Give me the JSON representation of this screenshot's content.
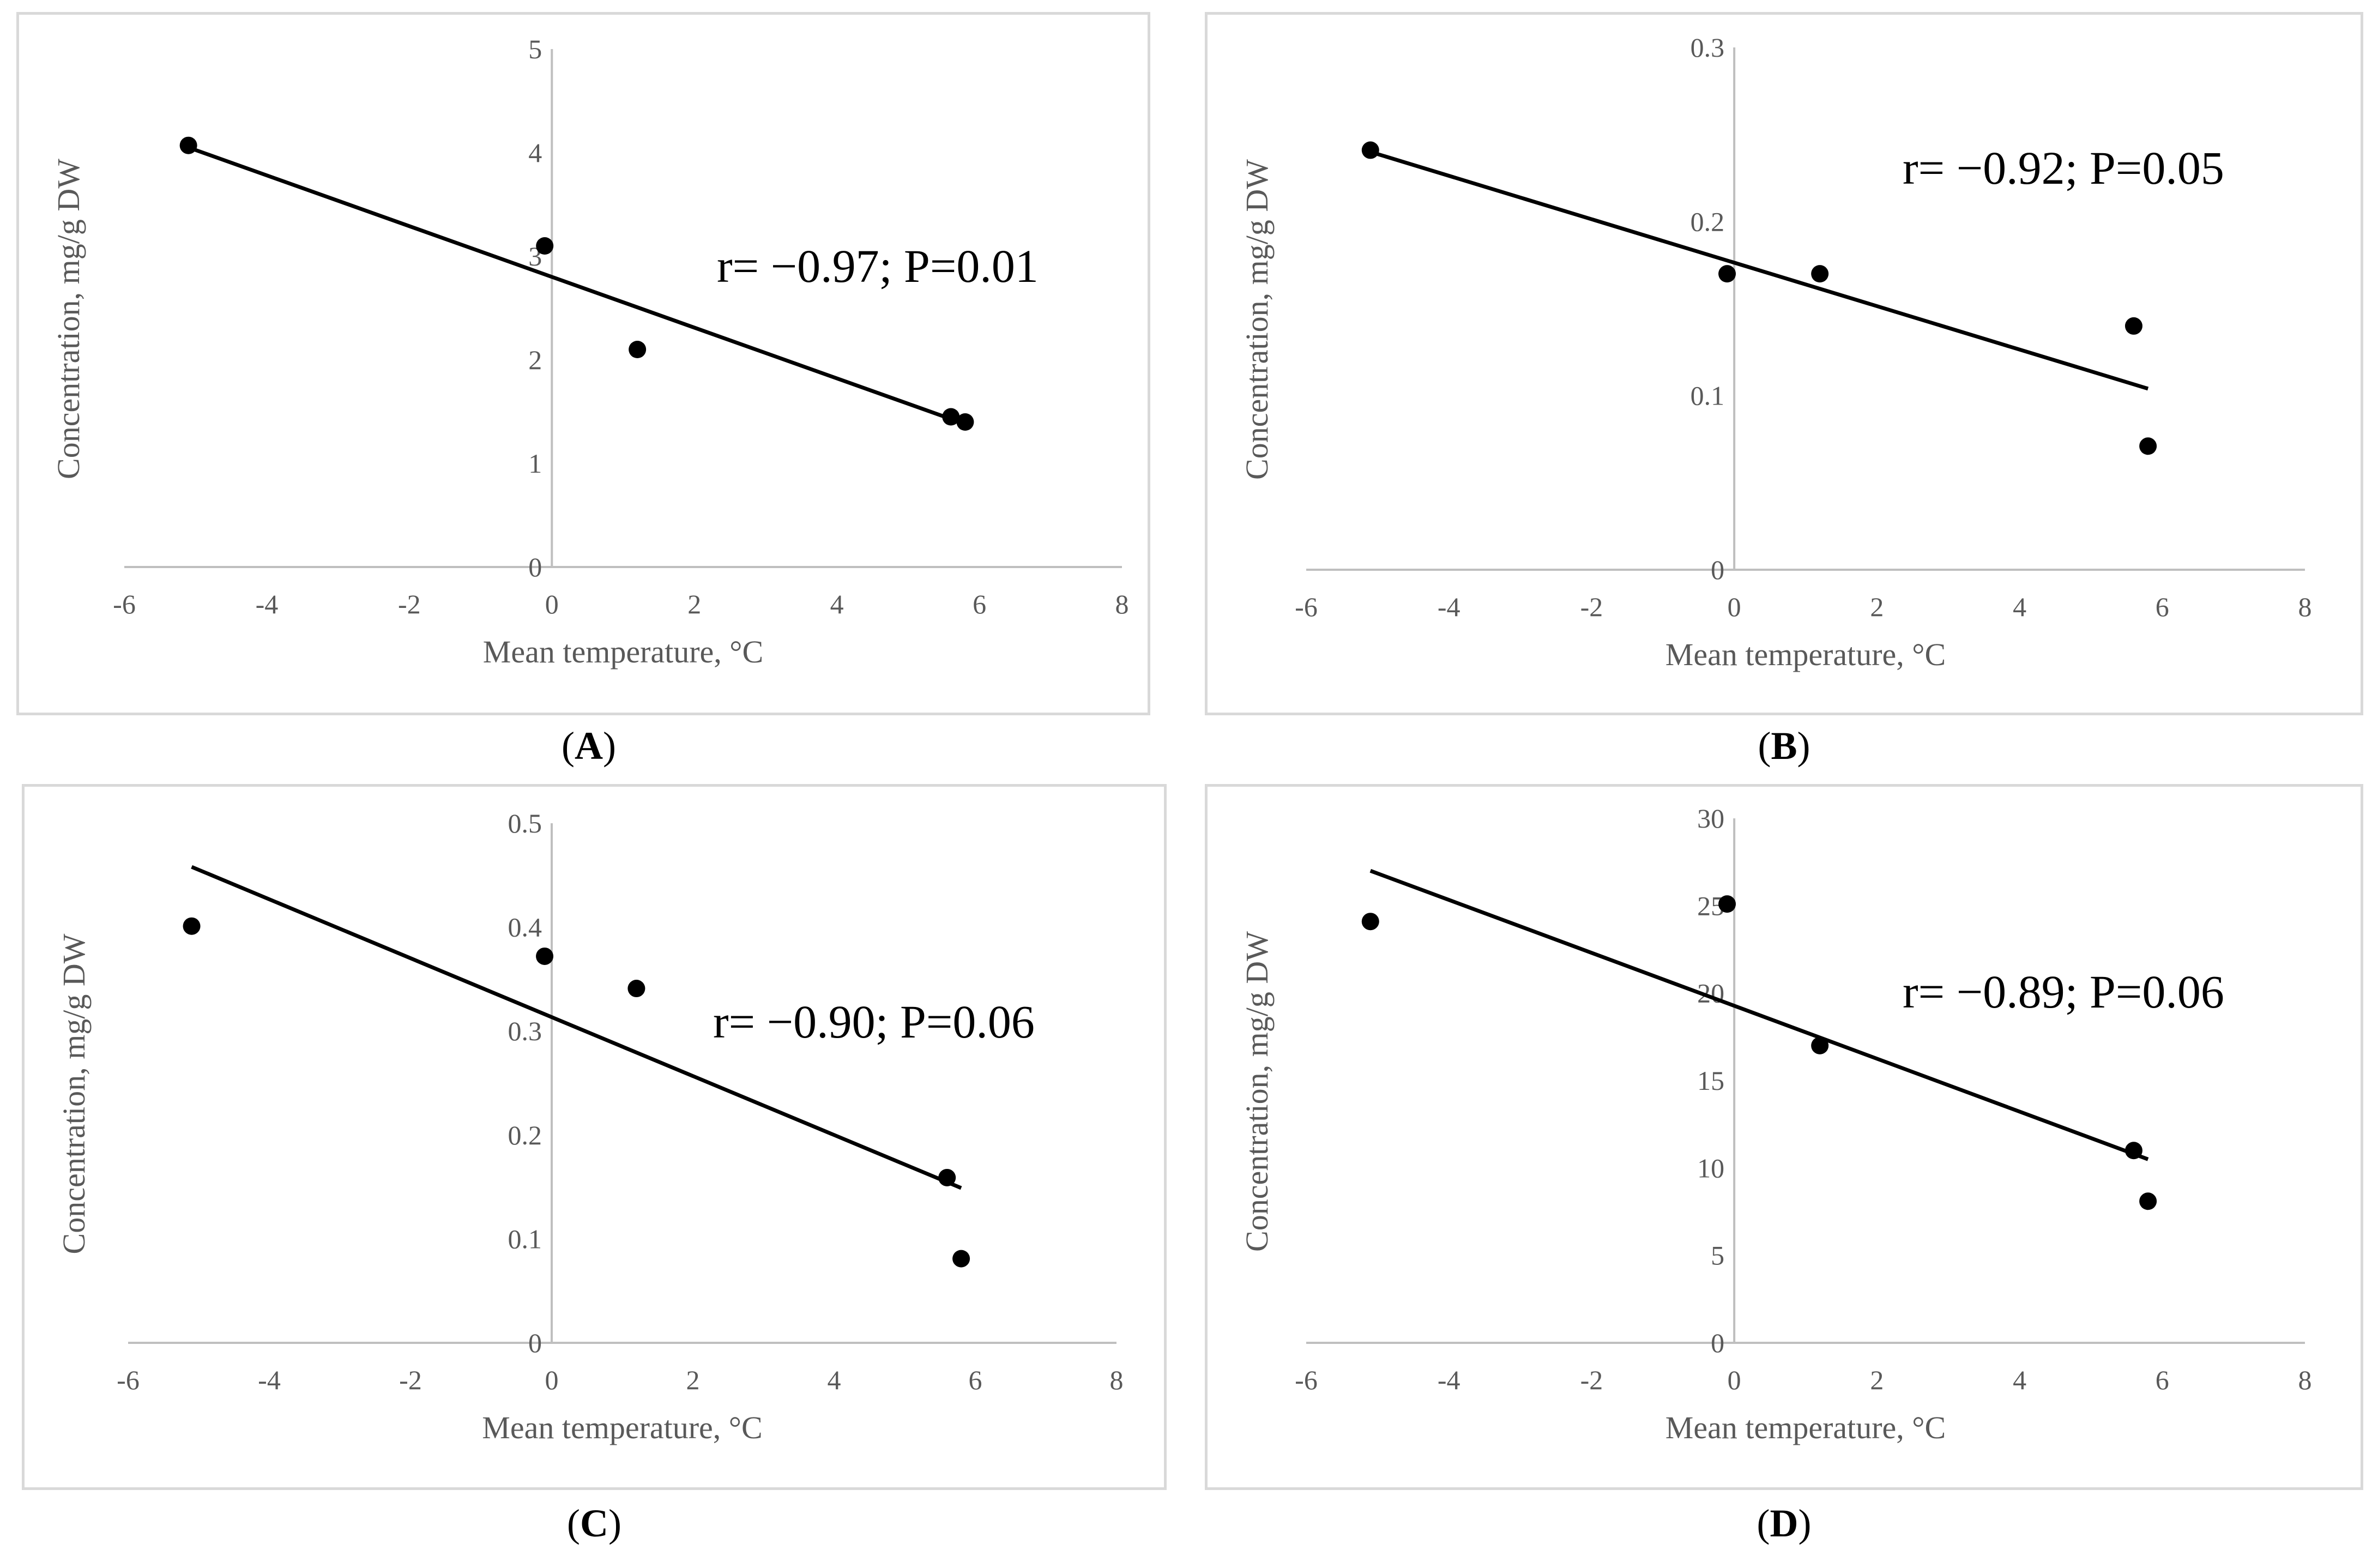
{
  "figure": {
    "colors": {
      "axis": "#bfbfbf",
      "tick_text": "#595959",
      "marker": "#000000",
      "trend": "#000000",
      "frame": "#d9d9d9"
    }
  },
  "chart_data": [
    {
      "panel": "A",
      "type": "scatter",
      "title": "",
      "xlabel": "Mean temperature, °C",
      "ylabel": "Concentration, mg/g DW",
      "xlim": [
        -6,
        8
      ],
      "ylim": [
        0,
        5
      ],
      "xticks": [
        -6,
        -4,
        -2,
        0,
        2,
        4,
        6,
        8
      ],
      "yticks": [
        0,
        1,
        2,
        3,
        4,
        5
      ],
      "ytick_labels": [
        "0",
        "1",
        "2",
        "3",
        "4",
        "5"
      ],
      "points": [
        [
          -5.1,
          4.07
        ],
        [
          -0.1,
          3.1
        ],
        [
          1.2,
          2.1
        ],
        [
          5.6,
          1.45
        ],
        [
          5.8,
          1.4
        ]
      ],
      "trendline": {
        "x": [
          -5.1,
          5.8
        ],
        "y": [
          4.05,
          1.38
        ]
      },
      "annotation": "r= −0.97; P=0.01",
      "caption_prefix": "(",
      "caption_letter": "A",
      "caption_suffix": ")"
    },
    {
      "panel": "B",
      "type": "scatter",
      "title": "",
      "xlabel": "Mean temperature, °C",
      "ylabel": "Concentration, mg/g DW",
      "xlim": [
        -6,
        8
      ],
      "ylim": [
        0,
        0.3
      ],
      "xticks": [
        -6,
        -4,
        -2,
        0,
        2,
        4,
        6,
        8
      ],
      "yticks": [
        0,
        0.1,
        0.2,
        0.3
      ],
      "ytick_labels": [
        "0",
        "0.1",
        "0.2",
        "0.3"
      ],
      "points": [
        [
          -5.1,
          0.241
        ],
        [
          -0.1,
          0.17
        ],
        [
          1.2,
          0.17
        ],
        [
          5.6,
          0.14
        ],
        [
          5.8,
          0.071
        ]
      ],
      "trendline": {
        "x": [
          -5.1,
          5.8
        ],
        "y": [
          0.24,
          0.104
        ]
      },
      "annotation": "r= −0.92; P=0.05",
      "caption_prefix": "(",
      "caption_letter": "B",
      "caption_suffix": ")"
    },
    {
      "panel": "C",
      "type": "scatter",
      "title": "",
      "xlabel": "Mean temperature, °C",
      "ylabel": "Concentration, mg/g DW",
      "xlim": [
        -6,
        8
      ],
      "ylim": [
        0,
        0.5
      ],
      "xticks": [
        -6,
        -4,
        -2,
        0,
        2,
        4,
        6,
        8
      ],
      "yticks": [
        0,
        0.1,
        0.2,
        0.3,
        0.4,
        0.5
      ],
      "ytick_labels": [
        "0",
        "0.1",
        "0.2",
        "0.3",
        "0.4",
        "0.5"
      ],
      "points": [
        [
          -5.1,
          0.401
        ],
        [
          -0.1,
          0.372
        ],
        [
          1.2,
          0.341
        ],
        [
          5.6,
          0.159
        ],
        [
          5.8,
          0.081
        ]
      ],
      "trendline": {
        "x": [
          -5.1,
          5.8
        ],
        "y": [
          0.458,
          0.149
        ]
      },
      "annotation": "r= −0.90; P=0.06",
      "caption_prefix": "(",
      "caption_letter": "C",
      "caption_suffix": ")"
    },
    {
      "panel": "D",
      "type": "scatter",
      "title": "",
      "xlabel": "Mean temperature, °C",
      "ylabel": "Concentration, mg/g DW",
      "xlim": [
        -6,
        8
      ],
      "ylim": [
        0,
        30
      ],
      "xticks": [
        -6,
        -4,
        -2,
        0,
        2,
        4,
        6,
        8
      ],
      "yticks": [
        0,
        5,
        10,
        15,
        20,
        25,
        30
      ],
      "ytick_labels": [
        "0",
        "5",
        "10",
        "15",
        "20",
        "25",
        "30"
      ],
      "points": [
        [
          -5.1,
          24.1
        ],
        [
          -0.1,
          25.1
        ],
        [
          1.2,
          17.0
        ],
        [
          5.6,
          11.0
        ],
        [
          5.8,
          8.1
        ]
      ],
      "trendline": {
        "x": [
          -5.1,
          5.8
        ],
        "y": [
          27.0,
          10.5
        ]
      },
      "annotation": "r= −0.89; P=0.06",
      "caption_prefix": "(",
      "caption_letter": "D",
      "caption_suffix": ")"
    }
  ]
}
